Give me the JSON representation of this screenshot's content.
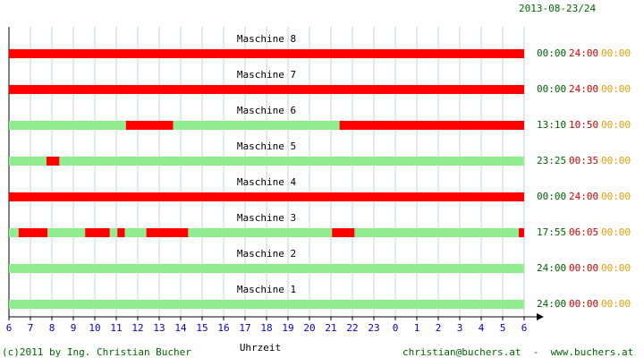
{
  "header": {
    "date": "2013-08-23/24"
  },
  "footer": {
    "copyright": "(c)2011 by Ing. Christian Bucher",
    "contact": "christian@buchers.at  -  www.buchers.at"
  },
  "colors": {
    "running": "#90ee90",
    "stopped": "#ff0000",
    "running_text": "#006600",
    "stopped_text": "#cc0000",
    "other_text": "#e6a000",
    "axis_text": "#0000cc"
  },
  "chart_data": {
    "type": "timeline",
    "xlabel": "Uhrzeit",
    "x_ticks": [
      "6",
      "7",
      "8",
      "9",
      "10",
      "11",
      "12",
      "13",
      "14",
      "15",
      "16",
      "17",
      "18",
      "19",
      "20",
      "21",
      "22",
      "23",
      "0",
      "1",
      "2",
      "3",
      "4",
      "5",
      "6"
    ],
    "xlim_hours_from_start": [
      0,
      24
    ],
    "grid": true,
    "machines": [
      {
        "name": "Maschine 8",
        "run": "00:00",
        "stop": "24:00",
        "other": "00:00",
        "segments": [
          {
            "state": "stopped",
            "from": 0,
            "to": 24
          }
        ]
      },
      {
        "name": "Maschine 7",
        "run": "00:00",
        "stop": "24:00",
        "other": "00:00",
        "segments": [
          {
            "state": "stopped",
            "from": 0,
            "to": 24
          }
        ]
      },
      {
        "name": "Maschine 6",
        "run": "13:10",
        "stop": "10:50",
        "other": "00:00",
        "segments": [
          {
            "state": "running",
            "from": 0,
            "to": 5.45
          },
          {
            "state": "stopped",
            "from": 5.45,
            "to": 7.65
          },
          {
            "state": "running",
            "from": 7.65,
            "to": 15.4
          },
          {
            "state": "stopped",
            "from": 15.4,
            "to": 24
          }
        ]
      },
      {
        "name": "Maschine 5",
        "run": "23:25",
        "stop": "00:35",
        "other": "00:00",
        "segments": [
          {
            "state": "running",
            "from": 0,
            "to": 1.75
          },
          {
            "state": "stopped",
            "from": 1.75,
            "to": 2.35
          },
          {
            "state": "running",
            "from": 2.35,
            "to": 24
          }
        ]
      },
      {
        "name": "Maschine 4",
        "run": "00:00",
        "stop": "24:00",
        "other": "00:00",
        "segments": [
          {
            "state": "stopped",
            "from": 0,
            "to": 24
          }
        ]
      },
      {
        "name": "Maschine 3",
        "run": "17:55",
        "stop": "06:05",
        "other": "00:00",
        "segments": [
          {
            "state": "running",
            "from": 0,
            "to": 0.45
          },
          {
            "state": "stopped",
            "from": 0.45,
            "to": 1.8
          },
          {
            "state": "running",
            "from": 1.8,
            "to": 3.55
          },
          {
            "state": "stopped",
            "from": 3.55,
            "to": 4.7
          },
          {
            "state": "running",
            "from": 4.7,
            "to": 5.05
          },
          {
            "state": "stopped",
            "from": 5.05,
            "to": 5.4
          },
          {
            "state": "running",
            "from": 5.4,
            "to": 6.4
          },
          {
            "state": "stopped",
            "from": 6.4,
            "to": 8.35
          },
          {
            "state": "running",
            "from": 8.35,
            "to": 15.05
          },
          {
            "state": "stopped",
            "from": 15.05,
            "to": 16.1
          },
          {
            "state": "running",
            "from": 16.1,
            "to": 23.75
          },
          {
            "state": "stopped",
            "from": 23.75,
            "to": 24
          }
        ]
      },
      {
        "name": "Maschine 2",
        "run": "24:00",
        "stop": "00:00",
        "other": "00:00",
        "segments": [
          {
            "state": "running",
            "from": 0,
            "to": 24
          }
        ]
      },
      {
        "name": "Maschine 1",
        "run": "24:00",
        "stop": "00:00",
        "other": "00:00",
        "segments": [
          {
            "state": "running",
            "from": 0,
            "to": 24
          }
        ]
      }
    ]
  }
}
